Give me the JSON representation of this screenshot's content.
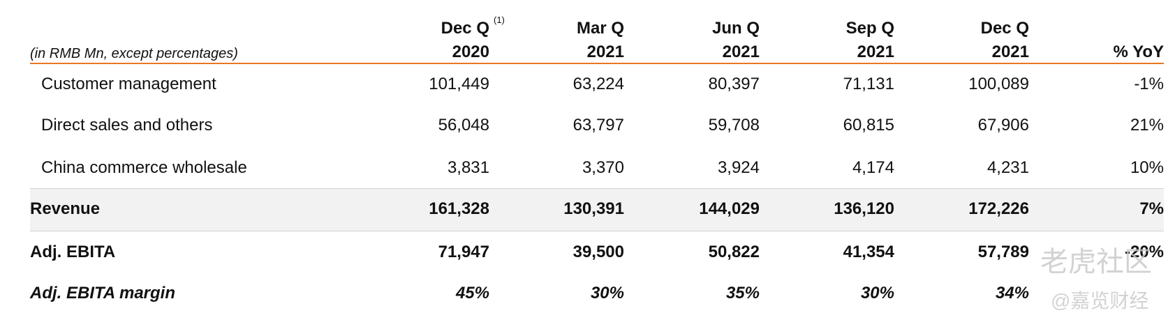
{
  "header": {
    "note": "(in RMB Mn, except percentages)",
    "columns": [
      {
        "line1": "Dec Q",
        "sup": "(1)",
        "line2": "2020"
      },
      {
        "line1": "Mar Q",
        "line2": "2021"
      },
      {
        "line1": "Jun Q",
        "line2": "2021"
      },
      {
        "line1": "Sep Q",
        "line2": "2021"
      },
      {
        "line1": "Dec Q",
        "line2": "2021"
      },
      {
        "line2": "% YoY"
      }
    ]
  },
  "table": {
    "rows": [
      [
        "Customer management",
        "101,449",
        "63,224",
        "80,397",
        "71,131",
        "100,089",
        "-1%"
      ],
      [
        "Direct sales and others",
        "56,048",
        "63,797",
        "59,708",
        "60,815",
        "67,906",
        "21%"
      ],
      [
        "China commerce wholesale",
        "3,831",
        "3,370",
        "3,924",
        "4,174",
        "4,231",
        "10%"
      ],
      [
        "Revenue",
        "161,328",
        "130,391",
        "144,029",
        "136,120",
        "172,226",
        "7%"
      ],
      [
        "Adj. EBITA",
        "71,947",
        "39,500",
        "50,822",
        "41,354",
        "57,789",
        "-20%"
      ],
      [
        "Adj. EBITA margin",
        "45%",
        "30%",
        "35%",
        "30%",
        "34%"
      ]
    ]
  },
  "watermarks": [
    "老虎社区",
    "@嘉览财经"
  ]
}
